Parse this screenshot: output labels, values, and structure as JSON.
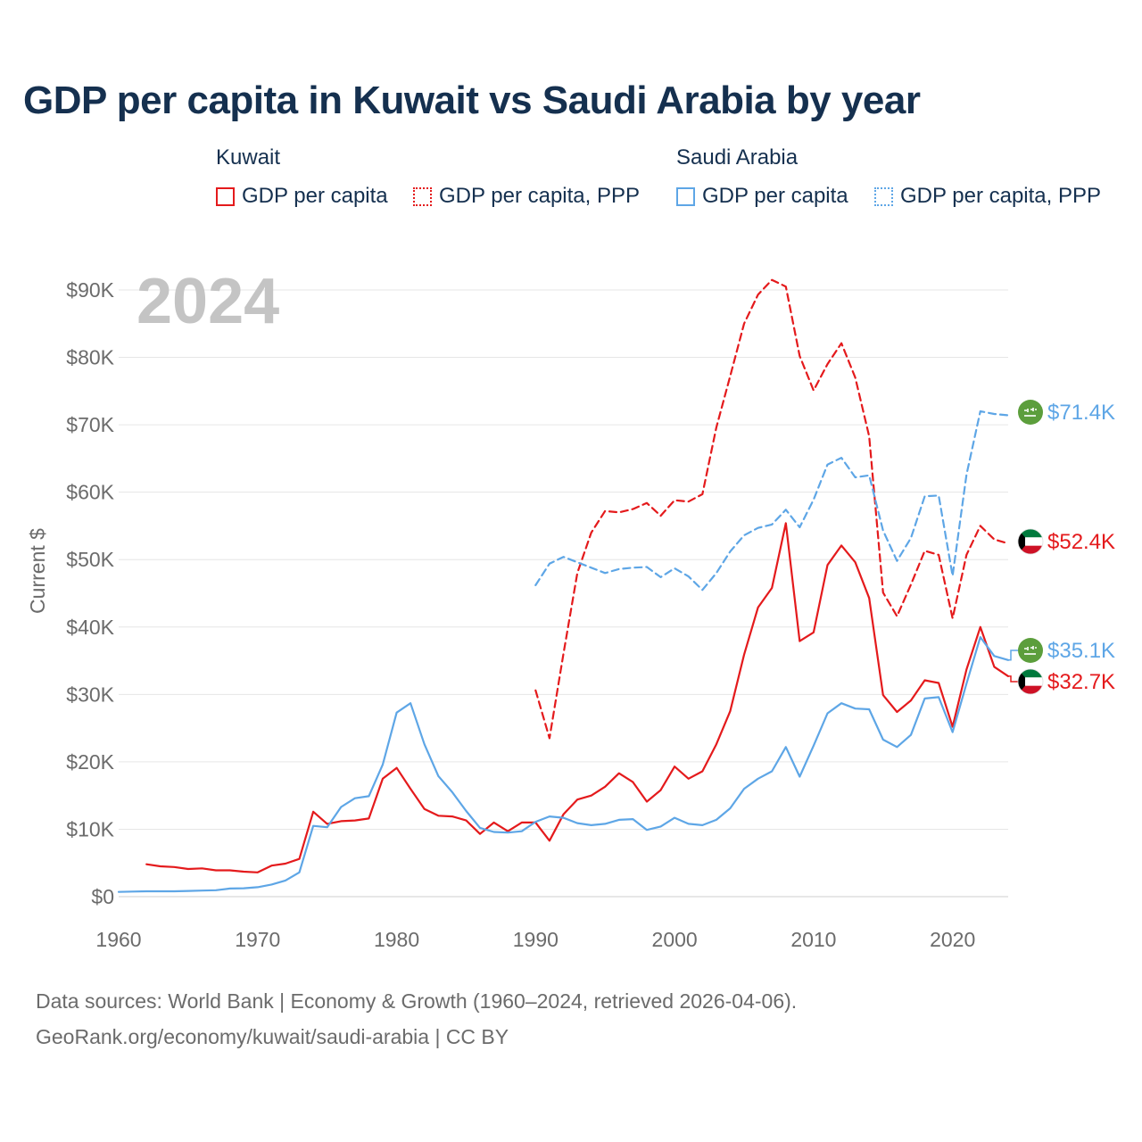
{
  "title": "GDP per capita in Kuwait vs Saudi Arabia by year",
  "legend": {
    "groups": [
      {
        "name": "Kuwait",
        "items": [
          "GDP per capita",
          "GDP per capita, PPP"
        ]
      },
      {
        "name": "Saudi Arabia",
        "items": [
          "GDP per capita",
          "GDP per capita, PPP"
        ]
      }
    ]
  },
  "colors": {
    "kuwait": "#e41a1c",
    "saudi": "#5ea6e6",
    "grid": "#e6e6e6",
    "axis_text": "#6b6b6b",
    "year_label": "#c4c4c4",
    "title": "#15304f"
  },
  "year_label": "2024",
  "end_labels": {
    "saudi_ppp": "$71.4K",
    "kuwait_ppp": "$52.4K",
    "saudi_gdp": "$35.1K",
    "kuwait_gdp": "$32.7K"
  },
  "footer": {
    "line1": "Data sources: World Bank | Economy & Growth (1960–2024, retrieved 2026-04-06).",
    "line2": "GeoRank.org/economy/kuwait/saudi-arabia | CC BY"
  },
  "chart_data": {
    "type": "line",
    "title": "GDP per capita in Kuwait vs Saudi Arabia by year",
    "xlabel": "",
    "ylabel": "Current $",
    "xlim": [
      1960,
      2024
    ],
    "ylim": [
      0,
      90000
    ],
    "xticks": [
      1960,
      1970,
      1980,
      1990,
      2000,
      2010,
      2020
    ],
    "xtick_labels": [
      "1960",
      "1970",
      "1980",
      "1990",
      "2000",
      "2010",
      "2020"
    ],
    "yticks": [
      0,
      10000,
      20000,
      30000,
      40000,
      50000,
      60000,
      70000,
      80000,
      90000
    ],
    "ytick_labels": [
      "$0",
      "$10K",
      "$20K",
      "$30K",
      "$40K",
      "$50K",
      "$60K",
      "$70K",
      "$80K",
      "$90K"
    ],
    "grid": true,
    "series": [
      {
        "name": "Kuwait GDP per capita",
        "country": "Kuwait",
        "metric": "GDP per capita",
        "style": "solid",
        "color": "#e41a1c",
        "x": [
          1962,
          1963,
          1964,
          1965,
          1966,
          1967,
          1968,
          1969,
          1970,
          1971,
          1972,
          1973,
          1974,
          1975,
          1976,
          1977,
          1978,
          1979,
          1980,
          1981,
          1982,
          1983,
          1984,
          1985,
          1986,
          1987,
          1988,
          1989,
          1990,
          1991,
          1992,
          1993,
          1994,
          1995,
          1996,
          1997,
          1998,
          1999,
          2000,
          2001,
          2002,
          2003,
          2004,
          2005,
          2006,
          2007,
          2008,
          2009,
          2010,
          2011,
          2012,
          2013,
          2014,
          2015,
          2016,
          2017,
          2018,
          2019,
          2020,
          2021,
          2022,
          2023,
          2024
        ],
        "y": [
          4800,
          4500,
          4400,
          4100,
          4200,
          3900,
          3900,
          3700,
          3600,
          4600,
          4900,
          5600,
          12600,
          10800,
          11200,
          11300,
          11600,
          17500,
          19100,
          16000,
          13000,
          12000,
          11900,
          11300,
          9300,
          11000,
          9700,
          11000,
          11000,
          8300,
          12200,
          14400,
          15000,
          16300,
          18300,
          17000,
          14100,
          15800,
          19300,
          17500,
          18600,
          22600,
          27500,
          35900,
          42900,
          45800,
          55400,
          37900,
          39200,
          49200,
          52100,
          49600,
          44300,
          29900,
          27400,
          29100,
          32100,
          31700,
          25200,
          33700,
          40000,
          34100,
          32700
        ]
      },
      {
        "name": "Kuwait GDP per capita, PPP",
        "country": "Kuwait",
        "metric": "GDP per capita, PPP",
        "style": "dashed",
        "color": "#e41a1c",
        "x": [
          1990,
          1991,
          1992,
          1993,
          1994,
          1995,
          1996,
          1997,
          1998,
          1999,
          2000,
          2001,
          2002,
          2003,
          2004,
          2005,
          2006,
          2007,
          2008,
          2009,
          2010,
          2011,
          2012,
          2013,
          2014,
          2015,
          2016,
          2017,
          2018,
          2019,
          2020,
          2021,
          2022,
          2023,
          2024
        ],
        "y": [
          30600,
          23500,
          36000,
          48000,
          54000,
          57200,
          57000,
          57500,
          58400,
          56500,
          58800,
          58600,
          59700,
          69600,
          77200,
          85000,
          89300,
          91500,
          90500,
          80200,
          75100,
          79000,
          82100,
          77000,
          68300,
          45100,
          41600,
          46300,
          51300,
          50700,
          41300,
          50700,
          55000,
          53000,
          52400
        ]
      },
      {
        "name": "Saudi Arabia GDP per capita",
        "country": "Saudi Arabia",
        "metric": "GDP per capita",
        "style": "solid",
        "color": "#5ea6e6",
        "x": [
          1960,
          1961,
          1962,
          1963,
          1964,
          1965,
          1966,
          1967,
          1968,
          1969,
          1970,
          1971,
          1972,
          1973,
          1974,
          1975,
          1976,
          1977,
          1978,
          1979,
          1980,
          1981,
          1982,
          1983,
          1984,
          1985,
          1986,
          1987,
          1988,
          1989,
          1990,
          1991,
          1992,
          1993,
          1994,
          1995,
          1996,
          1997,
          1998,
          1999,
          2000,
          2001,
          2002,
          2003,
          2004,
          2005,
          2006,
          2007,
          2008,
          2009,
          2010,
          2011,
          2012,
          2013,
          2014,
          2015,
          2016,
          2017,
          2018,
          2019,
          2020,
          2021,
          2022,
          2023,
          2024
        ],
        "y": [
          700,
          750,
          800,
          800,
          800,
          850,
          900,
          950,
          1200,
          1250,
          1400,
          1800,
          2400,
          3600,
          10500,
          10300,
          13300,
          14600,
          14900,
          19600,
          27300,
          28700,
          22600,
          17900,
          15500,
          12700,
          10200,
          9600,
          9500,
          9700,
          11100,
          11900,
          11700,
          10900,
          10600,
          10800,
          11400,
          11500,
          9900,
          10400,
          11700,
          10800,
          10600,
          11400,
          13100,
          16000,
          17500,
          18600,
          22200,
          17800,
          22400,
          27200,
          28700,
          27900,
          27800,
          23300,
          22200,
          24000,
          29400,
          29600,
          24400,
          31600,
          38500,
          35700,
          35100
        ]
      },
      {
        "name": "Saudi Arabia GDP per capita, PPP",
        "country": "Saudi Arabia",
        "metric": "GDP per capita, PPP",
        "style": "dashed",
        "color": "#5ea6e6",
        "x": [
          1990,
          1991,
          1992,
          1993,
          1994,
          1995,
          1996,
          1997,
          1998,
          1999,
          2000,
          2001,
          2002,
          2003,
          2004,
          2005,
          2006,
          2007,
          2008,
          2009,
          2010,
          2011,
          2012,
          2013,
          2014,
          2015,
          2016,
          2017,
          2018,
          2019,
          2020,
          2021,
          2022,
          2023,
          2024
        ],
        "y": [
          46200,
          49400,
          50400,
          49600,
          48800,
          48000,
          48600,
          48800,
          48900,
          47400,
          48700,
          47500,
          45500,
          48000,
          51200,
          53600,
          54700,
          55200,
          57400,
          54800,
          58900,
          64100,
          65100,
          62200,
          62500,
          54300,
          49800,
          53200,
          59400,
          59500,
          47600,
          62600,
          72000,
          71600,
          71400
        ]
      }
    ]
  }
}
